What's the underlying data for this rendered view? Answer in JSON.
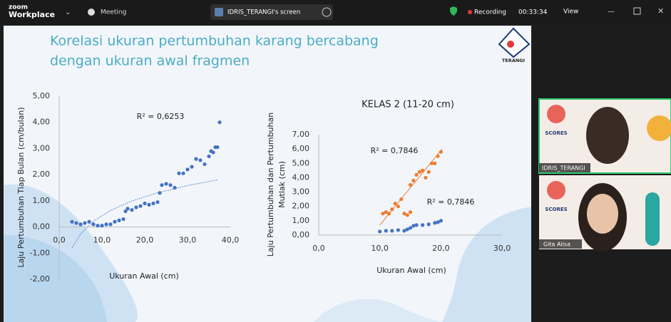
{
  "zoom_bar": {
    "brand_top": "zoom",
    "brand": "Workplace",
    "meeting": "Meeting",
    "share": "IDRIS_TERANGI's screen",
    "recording": "Recording",
    "timer": "00:33:34",
    "view": "View"
  },
  "slide": {
    "title_lines": [
      "Korelasi ukuran pertumbuhan karang bercabang",
      "dengan ukuran awal fragmen"
    ],
    "logo": "TERANGI"
  },
  "participants": [
    {
      "logo": "SCORES",
      "name": "IDRIS_TERANGI"
    },
    {
      "logo": "SCORES",
      "name": "Gita Alisa"
    }
  ],
  "chart_data": [
    {
      "type": "scatter",
      "xlabel": "Ukuran Awal (cm)",
      "ylabel": "Laju Pertumbuhan Tiap Bulan (cm/bulan)",
      "annotations": [
        "R² = 0,6253"
      ],
      "xlim": [
        0,
        40
      ],
      "xticks": [
        {
          "value": 0,
          "label": "0,0"
        },
        {
          "value": 10,
          "label": "10,0"
        },
        {
          "value": 20,
          "label": "20,0"
        },
        {
          "value": 30,
          "label": "30,0"
        },
        {
          "value": 40,
          "label": "40,0"
        }
      ],
      "ylim": [
        -2,
        5
      ],
      "yticks": [
        {
          "value": -2,
          "label": "-2,00"
        },
        {
          "value": -1,
          "label": "-1,00"
        },
        {
          "value": 0,
          "label": "0,00"
        },
        {
          "value": 1,
          "label": "1,00"
        },
        {
          "value": 2,
          "label": "2,00"
        },
        {
          "value": 3,
          "label": "3,00"
        },
        {
          "value": 4,
          "label": "4,00"
        },
        {
          "value": 5,
          "label": "5,00"
        }
      ],
      "series": [
        {
          "color": "#4472c4",
          "x": [
            3,
            4,
            5,
            6,
            7,
            8,
            9,
            10,
            11,
            12,
            13,
            14,
            15,
            15.5,
            16,
            17,
            18,
            19,
            20,
            21,
            22,
            23,
            23.5,
            24,
            25,
            26,
            27,
            28,
            29,
            30,
            31,
            32,
            33,
            34,
            35,
            35.5,
            36,
            36.5,
            37,
            37.5
          ],
          "values": [
            0.2,
            0.15,
            0.1,
            0.15,
            0.2,
            0.1,
            0.05,
            0.05,
            0.1,
            0.1,
            0.2,
            0.25,
            0.3,
            0.6,
            0.7,
            0.65,
            0.75,
            0.8,
            0.9,
            0.85,
            0.9,
            0.95,
            1.3,
            1.6,
            1.65,
            1.6,
            1.5,
            2.05,
            2.05,
            2.2,
            2.3,
            2.6,
            2.55,
            2.4,
            2.7,
            2.9,
            2.85,
            3.05,
            3.05,
            4.0
          ]
        }
      ],
      "trendlines": [
        {
          "color": "#4472c4",
          "x": [
            3,
            5,
            8,
            12,
            17,
            23,
            30,
            37
          ],
          "values": [
            -0.8,
            -0.27,
            0.22,
            0.63,
            0.99,
            1.31,
            1.58,
            1.8
          ]
        }
      ]
    },
    {
      "type": "scatter",
      "title": "KELAS 2 (11-20 cm)",
      "xlabel": "Ukuran Awal (cm)",
      "ylabel": [
        "Laju Pertumbuhan dan Pertumbuhan",
        "Mutlak (cm)"
      ],
      "annotations": [
        "R² = 0,7846",
        "R² = 0,7846"
      ],
      "xlim": [
        0,
        30
      ],
      "xticks": [
        {
          "value": 0,
          "label": "0,0"
        },
        {
          "value": 10,
          "label": "10,0"
        },
        {
          "value": 20,
          "label": "20,0"
        },
        {
          "value": 30,
          "label": "30,0"
        }
      ],
      "ylim": [
        0,
        7
      ],
      "yticks": [
        {
          "value": 0,
          "label": "0,00"
        },
        {
          "value": 1,
          "label": "1,00"
        },
        {
          "value": 2,
          "label": "2,00"
        },
        {
          "value": 3,
          "label": "3,00"
        },
        {
          "value": 4,
          "label": "4,00"
        },
        {
          "value": 5,
          "label": "5,00"
        },
        {
          "value": 6,
          "label": "6,00"
        },
        {
          "value": 7,
          "label": "7,00"
        }
      ],
      "series": [
        {
          "color": "#ed7d31",
          "x": [
            10.5,
            11,
            11.5,
            12,
            12.5,
            13,
            13.5,
            14,
            14.5,
            15,
            15,
            15.5,
            16,
            16.5,
            17,
            17.5,
            18,
            18.5,
            19,
            19.5,
            20
          ],
          "values": [
            1.5,
            1.6,
            1.5,
            1.8,
            2.2,
            2.0,
            2.5,
            1.5,
            1.4,
            1.6,
            3.5,
            3.8,
            4.2,
            4.4,
            4.5,
            4.0,
            4.4,
            5.0,
            5.0,
            5.5,
            5.8
          ]
        },
        {
          "color": "#4472c4",
          "x": [
            10,
            11,
            12,
            13,
            14,
            14.5,
            15,
            15.5,
            16,
            17,
            18,
            19,
            19.5,
            20
          ],
          "values": [
            0.25,
            0.3,
            0.3,
            0.35,
            0.3,
            0.4,
            0.5,
            0.65,
            0.7,
            0.7,
            0.75,
            0.85,
            0.9,
            1.0
          ]
        }
      ],
      "trendlines": [
        {
          "color": "#ed7d31",
          "x": [
            10,
            20.2
          ],
          "values": [
            0.7,
            6.0
          ]
        }
      ]
    }
  ]
}
